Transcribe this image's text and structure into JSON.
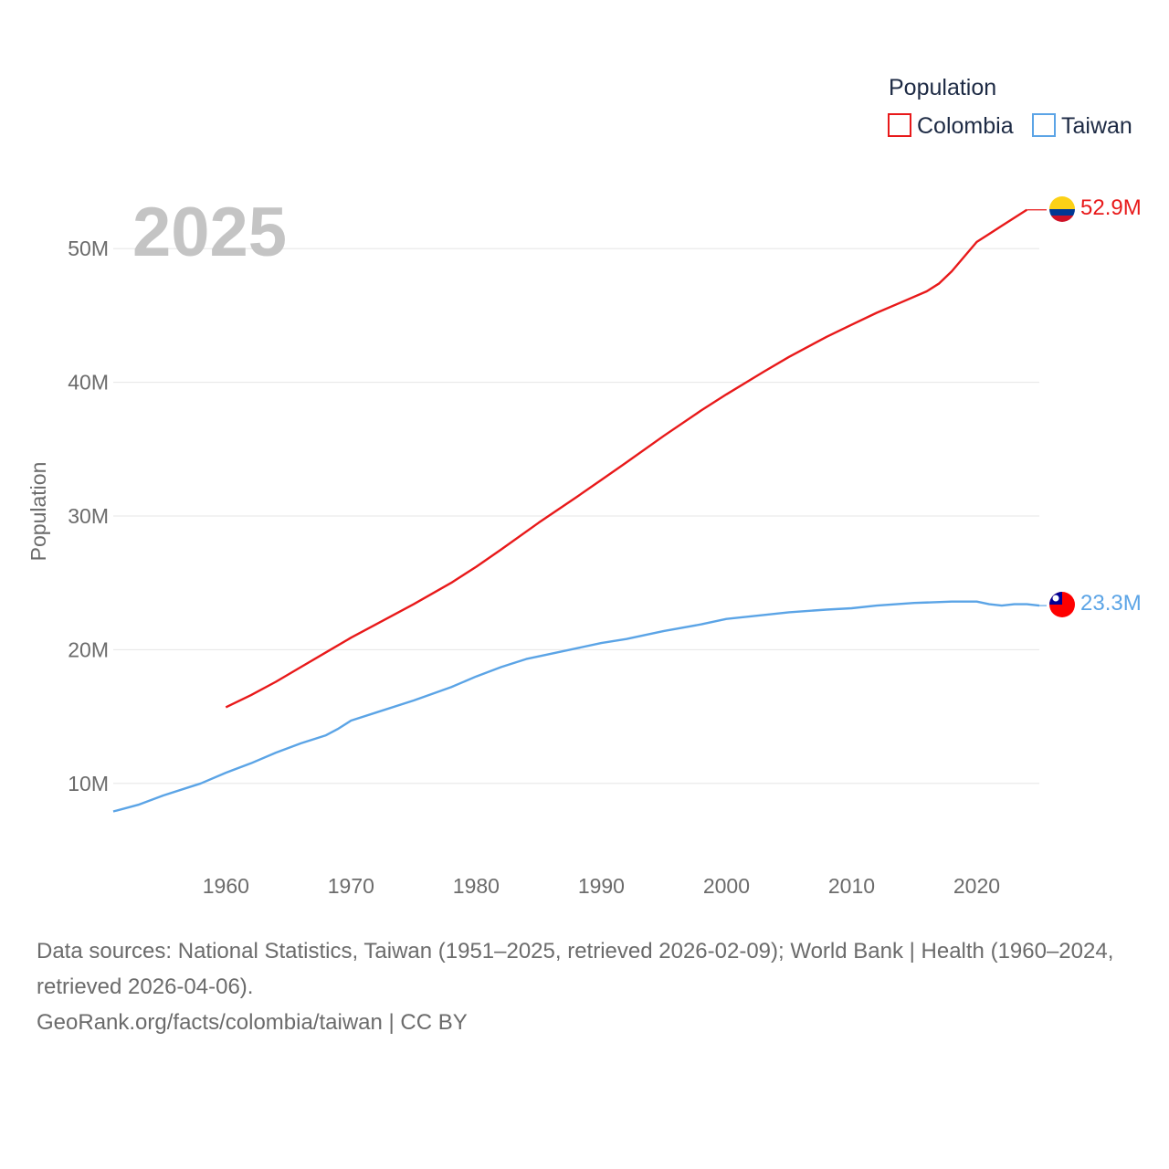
{
  "chart_data": {
    "type": "line",
    "year_label": "2025",
    "ylabel": "Population",
    "xlabel": "",
    "xlim": [
      1951,
      2025
    ],
    "ylim": [
      5.0,
      55.0
    ],
    "y_ticks": [
      {
        "value": 10,
        "label": "10M"
      },
      {
        "value": 20,
        "label": "20M"
      },
      {
        "value": 30,
        "label": "30M"
      },
      {
        "value": 40,
        "label": "40M"
      },
      {
        "value": 50,
        "label": "50M"
      }
    ],
    "x_ticks": [
      {
        "value": 1960,
        "label": "1960"
      },
      {
        "value": 1970,
        "label": "1970"
      },
      {
        "value": 1980,
        "label": "1980"
      },
      {
        "value": 1990,
        "label": "1990"
      },
      {
        "value": 2000,
        "label": "2000"
      },
      {
        "value": 2010,
        "label": "2010"
      },
      {
        "value": 2020,
        "label": "2020"
      }
    ],
    "legend": {
      "title": "Population",
      "position": "top-right"
    },
    "series": [
      {
        "name": "Colombia",
        "color": "#e8191a",
        "end_label": "52.9M",
        "flag": "colombia-flag",
        "x": [
          1960,
          1962,
          1964,
          1966,
          1968,
          1970,
          1972,
          1975,
          1978,
          1980,
          1982,
          1985,
          1988,
          1990,
          1992,
          1995,
          1998,
          2000,
          2003,
          2005,
          2008,
          2010,
          2012,
          2014,
          2016,
          2017,
          2018,
          2019,
          2020,
          2021,
          2022,
          2023,
          2024
        ],
        "values": [
          15.7,
          16.6,
          17.6,
          18.7,
          19.8,
          20.9,
          21.9,
          23.4,
          25.0,
          26.2,
          27.5,
          29.5,
          31.4,
          32.7,
          34.0,
          36.0,
          37.9,
          39.1,
          40.8,
          41.9,
          43.4,
          44.3,
          45.2,
          46.0,
          46.8,
          47.4,
          48.3,
          49.4,
          50.5,
          51.1,
          51.7,
          52.3,
          52.9
        ]
      },
      {
        "name": "Taiwan",
        "color": "#5ba4e6",
        "end_label": "23.3M",
        "flag": "taiwan-flag",
        "x": [
          1951,
          1953,
          1955,
          1957,
          1958,
          1960,
          1962,
          1964,
          1966,
          1968,
          1969,
          1970,
          1972,
          1975,
          1978,
          1980,
          1982,
          1984,
          1985,
          1988,
          1990,
          1992,
          1995,
          1998,
          2000,
          2002,
          2005,
          2008,
          2010,
          2012,
          2015,
          2018,
          2019,
          2020,
          2021,
          2022,
          2023,
          2024,
          2025
        ],
        "values": [
          7.9,
          8.4,
          9.1,
          9.7,
          10.0,
          10.8,
          11.5,
          12.3,
          13.0,
          13.6,
          14.1,
          14.7,
          15.3,
          16.2,
          17.2,
          18.0,
          18.7,
          19.3,
          19.5,
          20.1,
          20.5,
          20.8,
          21.4,
          21.9,
          22.3,
          22.5,
          22.8,
          23.0,
          23.1,
          23.3,
          23.5,
          23.6,
          23.6,
          23.6,
          23.4,
          23.3,
          23.4,
          23.4,
          23.3
        ]
      }
    ]
  },
  "footer": {
    "sources": "Data sources: National Statistics, Taiwan (1951–2025, retrieved 2026-02-09); World Bank | Health (1960–2024, retrieved 2026-04-06).",
    "credit": "GeoRank.org/facts/colombia/taiwan | CC BY"
  }
}
